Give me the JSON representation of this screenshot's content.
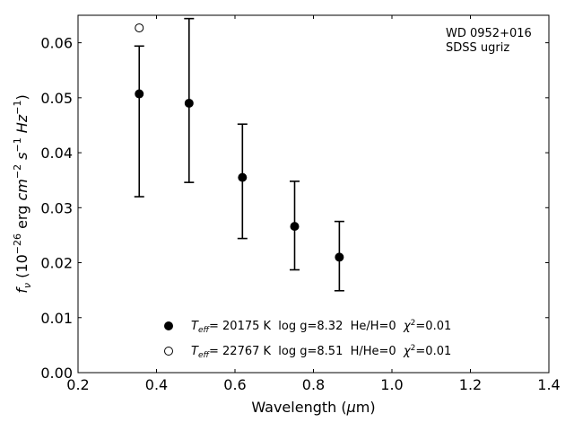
{
  "chart_data": {
    "type": "scatter",
    "xlabel_prefix": "Wavelength (",
    "xlabel_mu": "μ",
    "xlabel_suffix": "m)",
    "ylabel": {
      "f": "f",
      "nu": "ν",
      "open": " (10",
      "exp1": "−26",
      "erg": " erg ",
      "cm": "cm",
      "exp2": "−2",
      "s": " s",
      "exp3": "−1",
      "hz": " Hz",
      "exp4": "−1",
      "close": ")"
    },
    "xlim": [
      0.2,
      1.4
    ],
    "ylim": [
      0.0,
      0.065
    ],
    "xticks": [
      0.2,
      0.4,
      0.6,
      0.8,
      1.0,
      1.2,
      1.4
    ],
    "xtick_labels": [
      "0.2",
      "0.4",
      "0.6",
      "0.8",
      "1.0",
      "1.2",
      "1.4"
    ],
    "yticks": [
      0.0,
      0.01,
      0.02,
      0.03,
      0.04,
      0.05,
      0.06
    ],
    "ytick_labels": [
      "0.00",
      "0.01",
      "0.02",
      "0.03",
      "0.04",
      "0.05",
      "0.06"
    ],
    "grid": false,
    "annotation": [
      "WD 0952+016",
      "SDSS ugriz"
    ],
    "annotation_position": "top-right",
    "legend_position": "bottom-center",
    "series": [
      {
        "marker": "filled",
        "legend": {
          "T": "T",
          "sub": "eff",
          "rest": "= 20175 K  log g=8.32  He/H=0  ",
          "chi": "χ",
          "sup": "2",
          "end": "=0.01"
        },
        "points": [
          {
            "x": 0.356,
            "y": 0.0507
          },
          {
            "x": 0.483,
            "y": 0.049
          },
          {
            "x": 0.619,
            "y": 0.0355
          },
          {
            "x": 0.752,
            "y": 0.0266
          },
          {
            "x": 0.866,
            "y": 0.021
          }
        ]
      },
      {
        "marker": "open",
        "legend": {
          "T": "T",
          "sub": "eff",
          "rest": "= 22767 K  log g=8.51  H/He=0  ",
          "chi": "χ",
          "sup": "2",
          "end": "=0.01"
        },
        "points": [
          {
            "x": 0.356,
            "y": 0.0627
          }
        ]
      }
    ],
    "observed": {
      "points": [
        {
          "x": 0.356,
          "y": 0.0507,
          "ylow": 0.032,
          "yhigh": 0.0594
        },
        {
          "x": 0.483,
          "y": 0.049,
          "ylow": 0.0346,
          "yhigh": 0.0644
        },
        {
          "x": 0.619,
          "y": 0.0355,
          "ylow": 0.0244,
          "yhigh": 0.0452
        },
        {
          "x": 0.752,
          "y": 0.0266,
          "ylow": 0.0187,
          "yhigh": 0.0348
        },
        {
          "x": 0.866,
          "y": 0.021,
          "ylow": 0.0149,
          "yhigh": 0.0275
        }
      ]
    }
  }
}
